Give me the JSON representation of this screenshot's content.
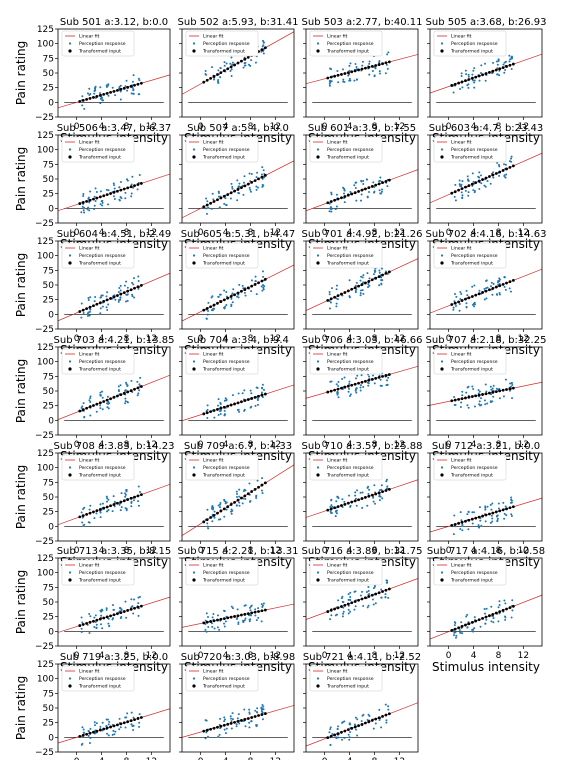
{
  "chart_data": [
    {
      "type": "scatter",
      "title": "Sub 501 a:3.12, b:0.0",
      "a": 3.12,
      "b": 0.0
    },
    {
      "type": "scatter",
      "title": "Sub 502 a:5.93, b:31.41",
      "a": 5.93,
      "b": 31.41
    },
    {
      "type": "scatter",
      "title": "Sub 503 a:2.77, b:40.11",
      "a": 2.77,
      "b": 40.11
    },
    {
      "type": "scatter",
      "title": "Sub 505 a:3.68, b:26.93",
      "a": 3.68,
      "b": 26.93
    },
    {
      "type": "scatter",
      "title": "Sub 506 a:3.47, b:6.37",
      "a": 3.47,
      "b": 6.37
    },
    {
      "type": "scatter",
      "title": "Sub 507 a:5.4, b:0.0",
      "a": 5.4,
      "b": 0.0
    },
    {
      "type": "scatter",
      "title": "Sub 601 a:3.9, b:7.55",
      "a": 3.9,
      "b": 7.55
    },
    {
      "type": "scatter",
      "title": "Sub 603 a:4.7, b:23.43",
      "a": 4.7,
      "b": 23.43
    },
    {
      "type": "scatter",
      "title": "Sub 604 a:4.51, b:2.49",
      "a": 4.51,
      "b": 2.49
    },
    {
      "type": "scatter",
      "title": "Sub 605 a:5.31, b:4.47",
      "a": 5.31,
      "b": 4.47
    },
    {
      "type": "scatter",
      "title": "Sub 701 a:4.92, b:21.26",
      "a": 4.92,
      "b": 21.26
    },
    {
      "type": "scatter",
      "title": "Sub 702 a:4.16, b:14.63",
      "a": 4.16,
      "b": 14.63
    },
    {
      "type": "scatter",
      "title": "Sub 703 a:4.21, b:13.85",
      "a": 4.21,
      "b": 13.85
    },
    {
      "type": "scatter",
      "title": "Sub 704 a:3.4, b:9.4",
      "a": 3.4,
      "b": 9.4
    },
    {
      "type": "scatter",
      "title": "Sub 706 a:3.03, b:46.66",
      "a": 3.03,
      "b": 46.66
    },
    {
      "type": "scatter",
      "title": "Sub 707 a:2.18, b:32.25",
      "a": 2.18,
      "b": 32.25
    },
    {
      "type": "scatter",
      "title": "Sub 708 a:3.83, b:14.23",
      "a": 3.83,
      "b": 14.23
    },
    {
      "type": "scatter",
      "title": "Sub 709 a:6.7, b:4.33",
      "a": 6.7,
      "b": 4.33
    },
    {
      "type": "scatter",
      "title": "Sub 710 a:3.57, b:25.88",
      "a": 3.57,
      "b": 25.88
    },
    {
      "type": "scatter",
      "title": "Sub 712 a:3.21, b:0.0",
      "a": 3.21,
      "b": 0.0
    },
    {
      "type": "scatter",
      "title": "Sub 713 a:3.35, b:8.15",
      "a": 3.35,
      "b": 8.15
    },
    {
      "type": "scatter",
      "title": "Sub 715 a:2.21, b:13.31",
      "a": 2.21,
      "b": 13.31
    },
    {
      "type": "scatter",
      "title": "Sub 716 a:3.89, b:31.75",
      "a": 3.89,
      "b": 31.75
    },
    {
      "type": "scatter",
      "title": "Sub 717 a:4.16, b:-0.58",
      "a": 4.16,
      "b": -0.58
    },
    {
      "type": "scatter",
      "title": "Sub 719 a:3.25, b:0.0",
      "a": 3.25,
      "b": 0.0
    },
    {
      "type": "scatter",
      "title": "Sub 720 a:3.03, b:8.98",
      "a": 3.03,
      "b": 8.98
    },
    {
      "type": "scatter",
      "title": "Sub 721 a:4.11, b:-2.52",
      "a": 4.11,
      "b": -2.52
    }
  ],
  "axes": {
    "ylabel": "Pain rating",
    "xlabel": "Stimulus intensity",
    "xticks": [
      "0",
      "4",
      "8",
      "12"
    ],
    "xtick_values": [
      0,
      4,
      8,
      12
    ],
    "yticks": [
      "125",
      "100",
      "75",
      "50",
      "25",
      "0",
      "−25"
    ],
    "ytick_values": [
      125,
      100,
      75,
      50,
      25,
      0,
      -25
    ],
    "xlim": [
      -3,
      15
    ],
    "ylim": [
      -25,
      125
    ]
  },
  "legend": {
    "linear_fit": "Linear fit",
    "perception": "Perception response",
    "transformed": "Transformed input"
  },
  "colors": {
    "fit_line": "#d62728",
    "perception": "#1f77b4",
    "transformed": "#000000",
    "zero_line": "#000000"
  }
}
